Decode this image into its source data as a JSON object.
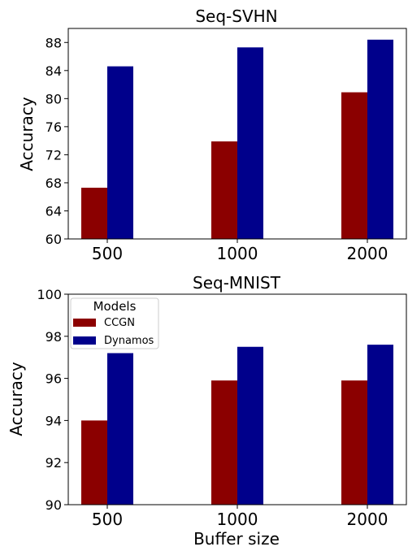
{
  "chart_data": [
    {
      "type": "bar",
      "title": "Seq-SVHN",
      "xlabel": "",
      "ylabel": "Accuracy",
      "categories": [
        "500",
        "1000",
        "2000"
      ],
      "ylim": [
        60,
        90
      ],
      "yticks": [
        "60",
        "64",
        "68",
        "72",
        "76",
        "80",
        "84",
        "88"
      ],
      "series": [
        {
          "name": "CCGN",
          "values": [
            67.3,
            73.9,
            80.9
          ],
          "color": "#8b0000"
        },
        {
          "name": "Dynamos",
          "values": [
            84.6,
            87.3,
            88.4
          ],
          "color": "#00008b"
        }
      ],
      "legend": null
    },
    {
      "type": "bar",
      "title": "Seq-MNIST",
      "xlabel": "Buffer size",
      "ylabel": "Accuracy",
      "categories": [
        "500",
        "1000",
        "2000"
      ],
      "ylim": [
        90,
        100
      ],
      "yticks": [
        "90",
        "92",
        "94",
        "96",
        "98",
        "100"
      ],
      "series": [
        {
          "name": "CCGN",
          "values": [
            94.0,
            95.9,
            95.9
          ],
          "color": "#8b0000"
        },
        {
          "name": "Dynamos",
          "values": [
            97.2,
            97.5,
            97.6
          ],
          "color": "#00008b"
        }
      ],
      "legend": {
        "title": "Models",
        "placement": "top-left"
      }
    }
  ]
}
